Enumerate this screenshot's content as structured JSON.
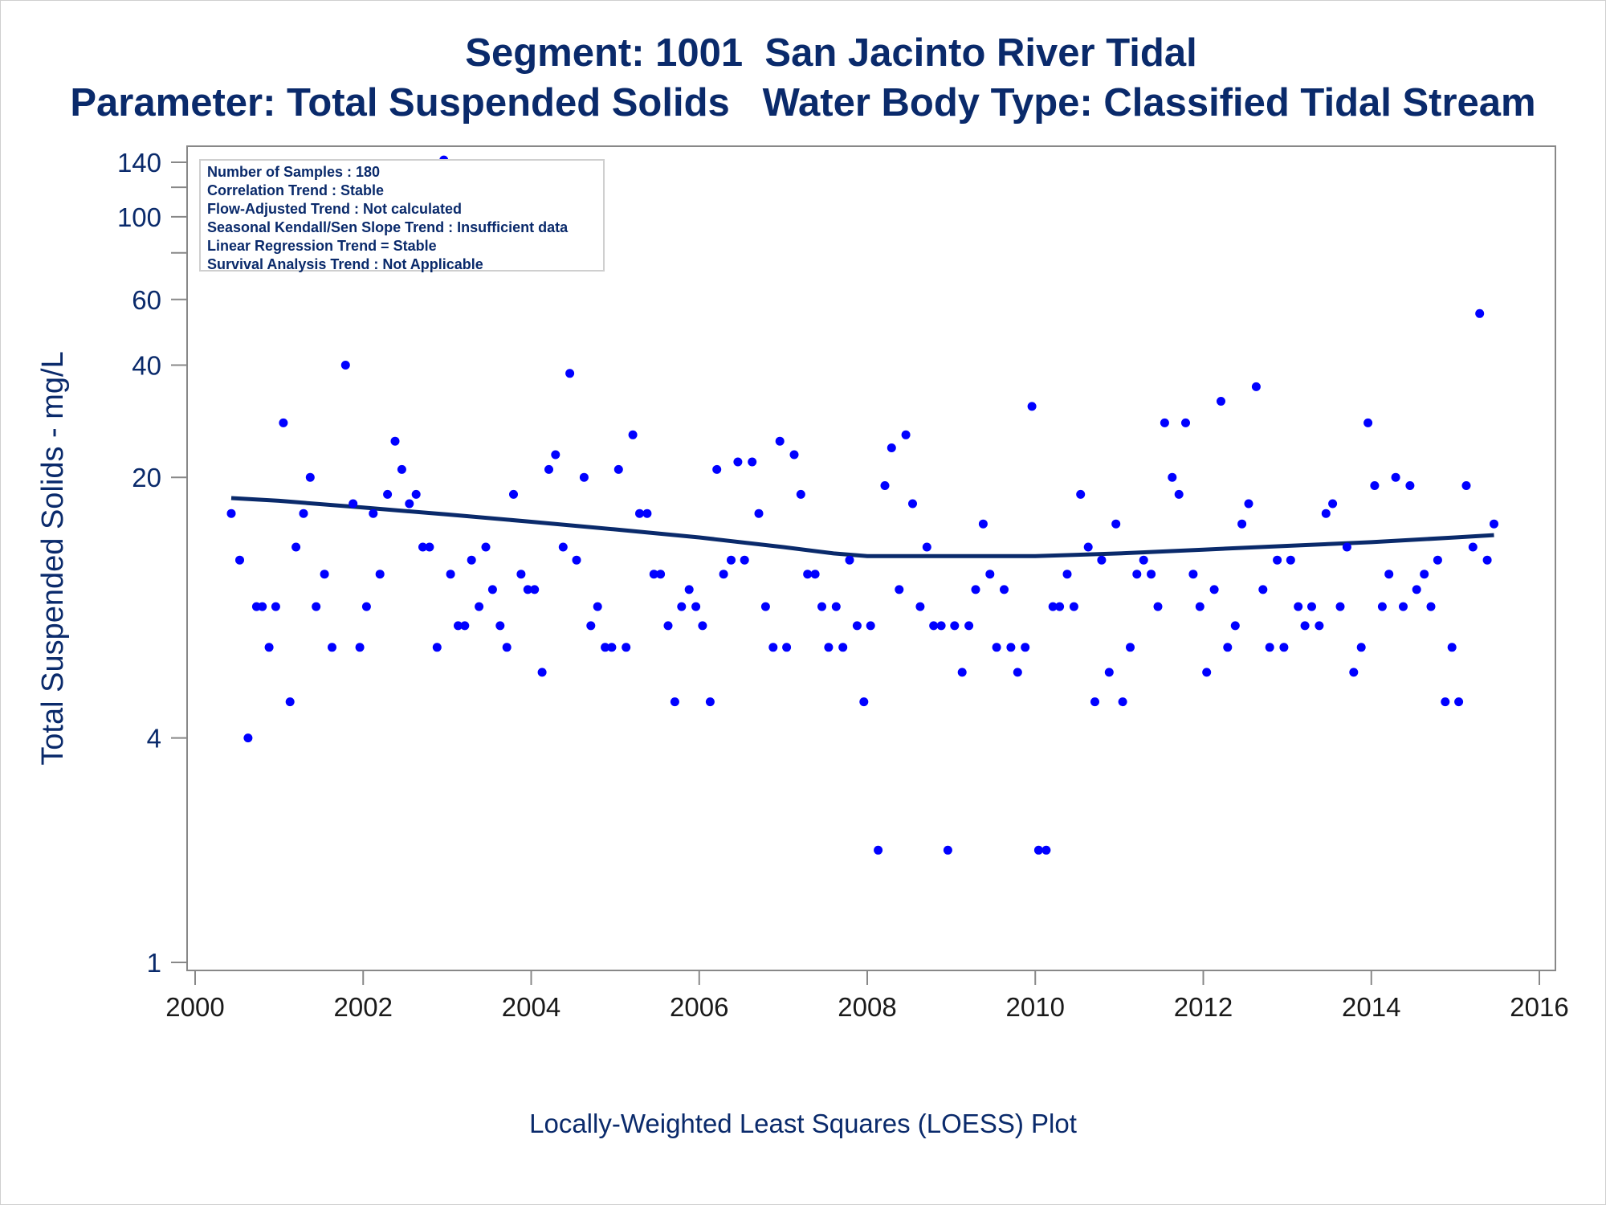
{
  "titles": {
    "line1": "Segment: 1001  San Jacinto River Tidal",
    "line2": "Parameter: Total Suspended Solids   Water Body Type: Classified Tidal Stream"
  },
  "footnote": "Locally-Weighted Least Squares (LOESS) Plot",
  "stats": [
    "Number of Samples : 180",
    "Correlation Trend : Stable",
    "Flow-Adjusted Trend : Not calculated",
    "Seasonal Kendall/Sen Slope Trend : Insufficient data",
    "Linear Regression Trend = Stable",
    "Survival Analysis Trend : Not Applicable"
  ],
  "colors": {
    "points": "#0000ff",
    "loess": "#0a2a6b",
    "text": "#0a2a6b",
    "axis": "#888888"
  },
  "chart_data": {
    "type": "scatter",
    "ylabel": "Total Suspended Solids - mg/L",
    "xlabel": "",
    "yscale": "log",
    "xlim": [
      2000,
      2016
    ],
    "ylim": [
      1,
      150
    ],
    "xticks": [
      2000,
      2002,
      2004,
      2006,
      2008,
      2010,
      2012,
      2014,
      2016
    ],
    "yticks": [
      1,
      4,
      20,
      40,
      60,
      100,
      140
    ],
    "grid": false,
    "points": [
      [
        2000.43,
        16
      ],
      [
        2000.53,
        12
      ],
      [
        2000.63,
        4
      ],
      [
        2000.73,
        9
      ],
      [
        2000.8,
        9
      ],
      [
        2000.88,
        7
      ],
      [
        2000.96,
        9
      ],
      [
        2001.05,
        28
      ],
      [
        2001.13,
        5
      ],
      [
        2001.2,
        13
      ],
      [
        2001.29,
        16
      ],
      [
        2001.37,
        20
      ],
      [
        2001.44,
        9
      ],
      [
        2001.54,
        11
      ],
      [
        2001.63,
        7
      ],
      [
        2001.79,
        40
      ],
      [
        2001.88,
        17
      ],
      [
        2001.96,
        7
      ],
      [
        2002.04,
        9
      ],
      [
        2002.12,
        16
      ],
      [
        2002.2,
        11
      ],
      [
        2002.29,
        18
      ],
      [
        2002.38,
        25
      ],
      [
        2002.46,
        21
      ],
      [
        2002.55,
        17
      ],
      [
        2002.63,
        18
      ],
      [
        2002.71,
        13
      ],
      [
        2002.79,
        13
      ],
      [
        2002.88,
        7
      ],
      [
        2002.96,
        142
      ],
      [
        2003.04,
        11
      ],
      [
        2003.13,
        8
      ],
      [
        2003.21,
        8
      ],
      [
        2003.29,
        12
      ],
      [
        2003.38,
        9
      ],
      [
        2003.46,
        13
      ],
      [
        2003.54,
        10
      ],
      [
        2003.63,
        8
      ],
      [
        2003.71,
        7
      ],
      [
        2003.79,
        18
      ],
      [
        2003.88,
        11
      ],
      [
        2003.96,
        10
      ],
      [
        2004.04,
        10
      ],
      [
        2004.13,
        6
      ],
      [
        2004.21,
        21
      ],
      [
        2004.29,
        23
      ],
      [
        2004.38,
        13
      ],
      [
        2004.46,
        38
      ],
      [
        2004.54,
        12
      ],
      [
        2004.63,
        20
      ],
      [
        2004.71,
        8
      ],
      [
        2004.79,
        9
      ],
      [
        2004.88,
        7
      ],
      [
        2004.96,
        7
      ],
      [
        2005.04,
        21
      ],
      [
        2005.13,
        7
      ],
      [
        2005.21,
        26
      ],
      [
        2005.29,
        16
      ],
      [
        2005.38,
        16
      ],
      [
        2005.46,
        11
      ],
      [
        2005.54,
        11
      ],
      [
        2005.63,
        8
      ],
      [
        2005.71,
        5
      ],
      [
        2005.79,
        9
      ],
      [
        2005.88,
        10
      ],
      [
        2005.96,
        9
      ],
      [
        2006.04,
        8
      ],
      [
        2006.13,
        5
      ],
      [
        2006.21,
        21
      ],
      [
        2006.29,
        11
      ],
      [
        2006.38,
        12
      ],
      [
        2006.46,
        22
      ],
      [
        2006.54,
        12
      ],
      [
        2006.63,
        22
      ],
      [
        2006.71,
        16
      ],
      [
        2006.79,
        9
      ],
      [
        2006.88,
        7
      ],
      [
        2006.96,
        25
      ],
      [
        2007.04,
        7
      ],
      [
        2007.13,
        23
      ],
      [
        2007.21,
        18
      ],
      [
        2007.29,
        11
      ],
      [
        2007.38,
        11
      ],
      [
        2007.46,
        9
      ],
      [
        2007.54,
        7
      ],
      [
        2007.63,
        9
      ],
      [
        2007.71,
        7
      ],
      [
        2007.79,
        12
      ],
      [
        2007.88,
        8
      ],
      [
        2007.96,
        5
      ],
      [
        2008.04,
        8
      ],
      [
        2008.13,
        2
      ],
      [
        2008.21,
        19
      ],
      [
        2008.29,
        24
      ],
      [
        2008.38,
        10
      ],
      [
        2008.46,
        26
      ],
      [
        2008.54,
        17
      ],
      [
        2008.63,
        9
      ],
      [
        2008.71,
        13
      ],
      [
        2008.79,
        8
      ],
      [
        2008.88,
        8
      ],
      [
        2008.96,
        2
      ],
      [
        2009.04,
        8
      ],
      [
        2009.13,
        6
      ],
      [
        2009.21,
        8
      ],
      [
        2009.29,
        10
      ],
      [
        2009.38,
        15
      ],
      [
        2009.46,
        11
      ],
      [
        2009.54,
        7
      ],
      [
        2009.63,
        10
      ],
      [
        2009.71,
        7
      ],
      [
        2009.79,
        6
      ],
      [
        2009.88,
        7
      ],
      [
        2009.96,
        31
      ],
      [
        2010.04,
        2
      ],
      [
        2010.13,
        2
      ],
      [
        2010.21,
        9
      ],
      [
        2010.29,
        9
      ],
      [
        2010.38,
        11
      ],
      [
        2010.46,
        9
      ],
      [
        2010.54,
        18
      ],
      [
        2010.63,
        13
      ],
      [
        2010.71,
        5
      ],
      [
        2010.79,
        12
      ],
      [
        2010.88,
        6
      ],
      [
        2010.96,
        15
      ],
      [
        2011.04,
        5
      ],
      [
        2011.13,
        7
      ],
      [
        2011.21,
        11
      ],
      [
        2011.29,
        12
      ],
      [
        2011.38,
        11
      ],
      [
        2011.46,
        9
      ],
      [
        2011.54,
        28
      ],
      [
        2011.63,
        20
      ],
      [
        2011.71,
        18
      ],
      [
        2011.79,
        28
      ],
      [
        2011.88,
        11
      ],
      [
        2011.96,
        9
      ],
      [
        2012.04,
        6
      ],
      [
        2012.13,
        10
      ],
      [
        2012.21,
        32
      ],
      [
        2012.29,
        7
      ],
      [
        2012.38,
        8
      ],
      [
        2012.46,
        15
      ],
      [
        2012.54,
        17
      ],
      [
        2012.63,
        35
      ],
      [
        2012.71,
        10
      ],
      [
        2012.79,
        7
      ],
      [
        2012.88,
        12
      ],
      [
        2012.96,
        7
      ],
      [
        2013.04,
        12
      ],
      [
        2013.13,
        9
      ],
      [
        2013.21,
        8
      ],
      [
        2013.29,
        9
      ],
      [
        2013.38,
        8
      ],
      [
        2013.46,
        16
      ],
      [
        2013.54,
        17
      ],
      [
        2013.63,
        9
      ],
      [
        2013.71,
        13
      ],
      [
        2013.79,
        6
      ],
      [
        2013.88,
        7
      ],
      [
        2013.96,
        28
      ],
      [
        2014.04,
        19
      ],
      [
        2014.13,
        9
      ],
      [
        2014.21,
        11
      ],
      [
        2014.29,
        20
      ],
      [
        2014.38,
        9
      ],
      [
        2014.46,
        19
      ],
      [
        2014.54,
        10
      ],
      [
        2014.63,
        11
      ],
      [
        2014.71,
        9
      ],
      [
        2014.79,
        12
      ],
      [
        2014.88,
        5
      ],
      [
        2014.96,
        7
      ],
      [
        2015.04,
        5
      ],
      [
        2015.13,
        19
      ],
      [
        2015.21,
        13
      ],
      [
        2015.29,
        55
      ],
      [
        2015.38,
        12
      ],
      [
        2015.46,
        15
      ]
    ],
    "loess": [
      [
        2000.43,
        17.6
      ],
      [
        2001.0,
        17.3
      ],
      [
        2002.0,
        16.6
      ],
      [
        2003.0,
        15.9
      ],
      [
        2004.0,
        15.2
      ],
      [
        2005.0,
        14.5
      ],
      [
        2006.0,
        13.8
      ],
      [
        2007.0,
        13.0
      ],
      [
        2007.6,
        12.5
      ],
      [
        2008.0,
        12.3
      ],
      [
        2009.0,
        12.3
      ],
      [
        2010.0,
        12.3
      ],
      [
        2010.5,
        12.4
      ],
      [
        2011.0,
        12.5
      ],
      [
        2012.0,
        12.8
      ],
      [
        2013.0,
        13.1
      ],
      [
        2014.0,
        13.4
      ],
      [
        2015.0,
        13.8
      ],
      [
        2015.46,
        14.0
      ]
    ]
  }
}
